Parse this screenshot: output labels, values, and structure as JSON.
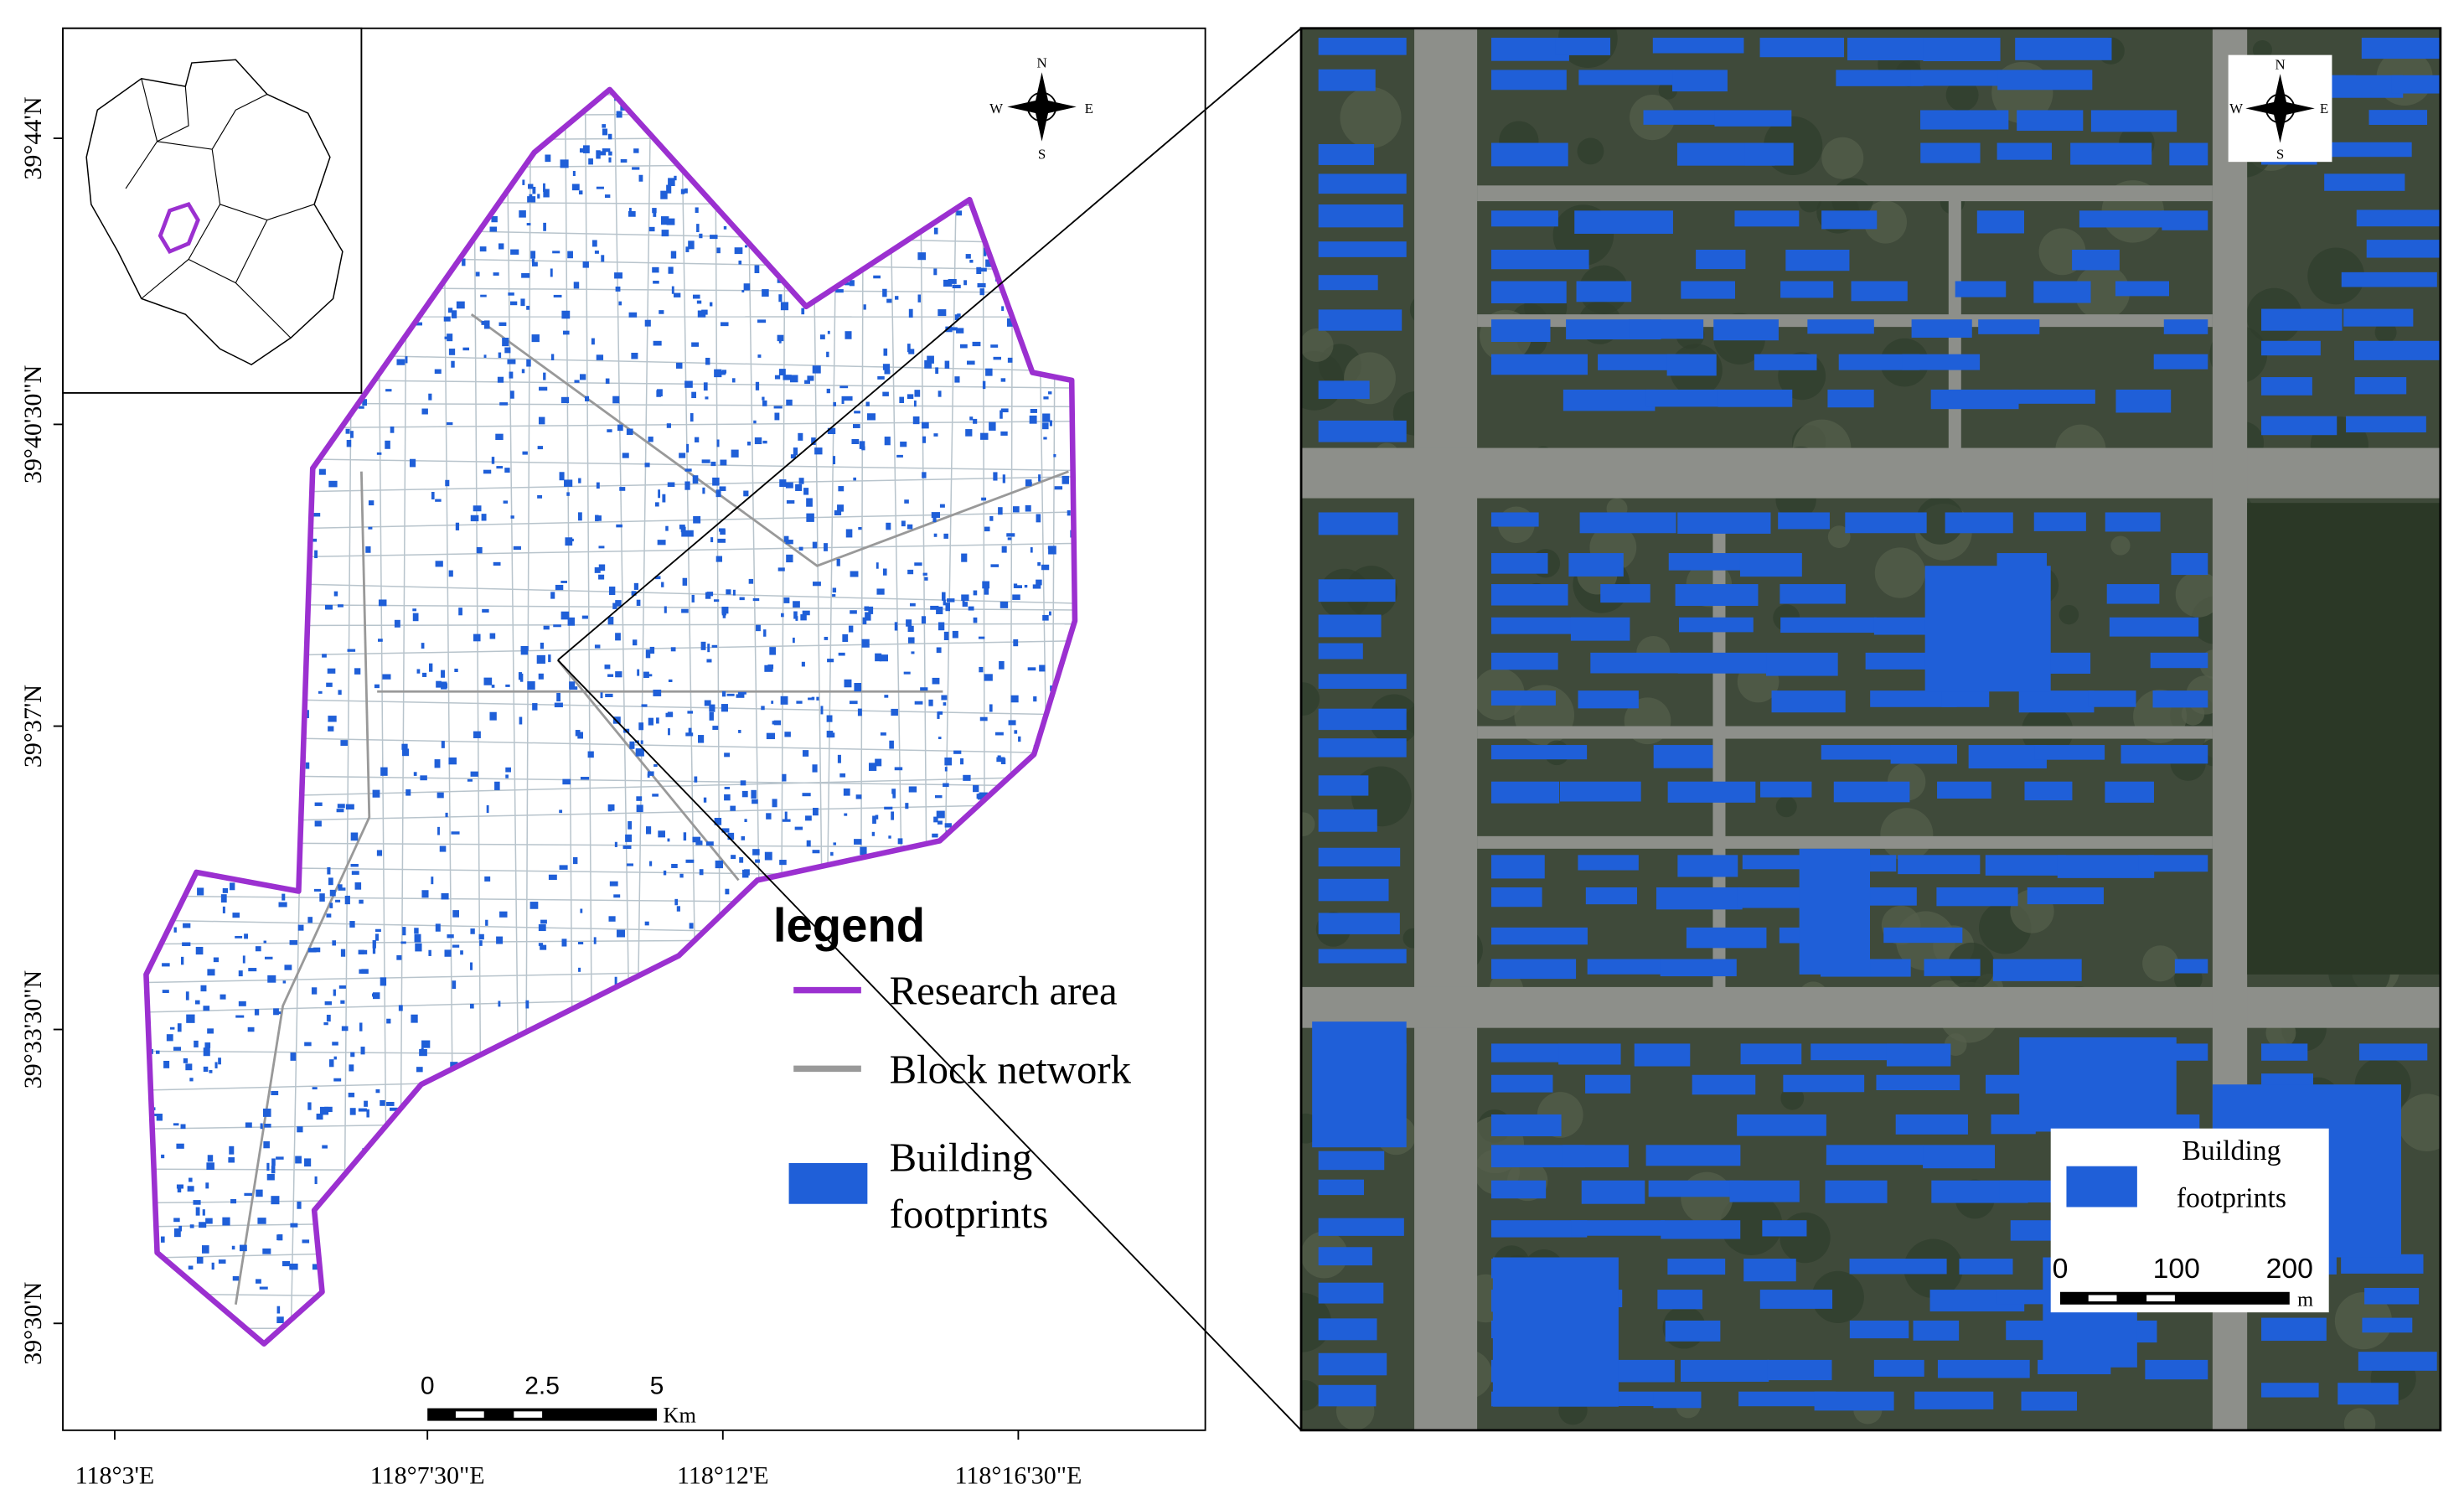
{
  "left_map": {
    "longitude_labels": [
      "118°3'E",
      "118°7'30\"E",
      "118°12'E",
      "118°16'30\"E"
    ],
    "latitude_labels": [
      "39°44'N",
      "39°40'30\"N",
      "39°37'N",
      "39°33'30\"N",
      "39°30'N"
    ],
    "compass": {
      "n": "N",
      "s": "S",
      "w": "W",
      "e": "E"
    },
    "legend": {
      "title": "legend",
      "research_area": "Research area",
      "block_network": "Block network",
      "building_footprints": [
        "Building",
        "footprints"
      ]
    },
    "scale_bar": {
      "labels": [
        "0",
        "2.5",
        "5"
      ],
      "unit": "Km"
    }
  },
  "right_map": {
    "compass": {
      "n": "N",
      "s": "S",
      "w": "W",
      "e": "E"
    },
    "legend": {
      "building_footprints": [
        "Building",
        "footprints"
      ]
    },
    "scale_bar": {
      "labels": [
        "0",
        "100",
        "200"
      ],
      "unit": "m"
    }
  }
}
